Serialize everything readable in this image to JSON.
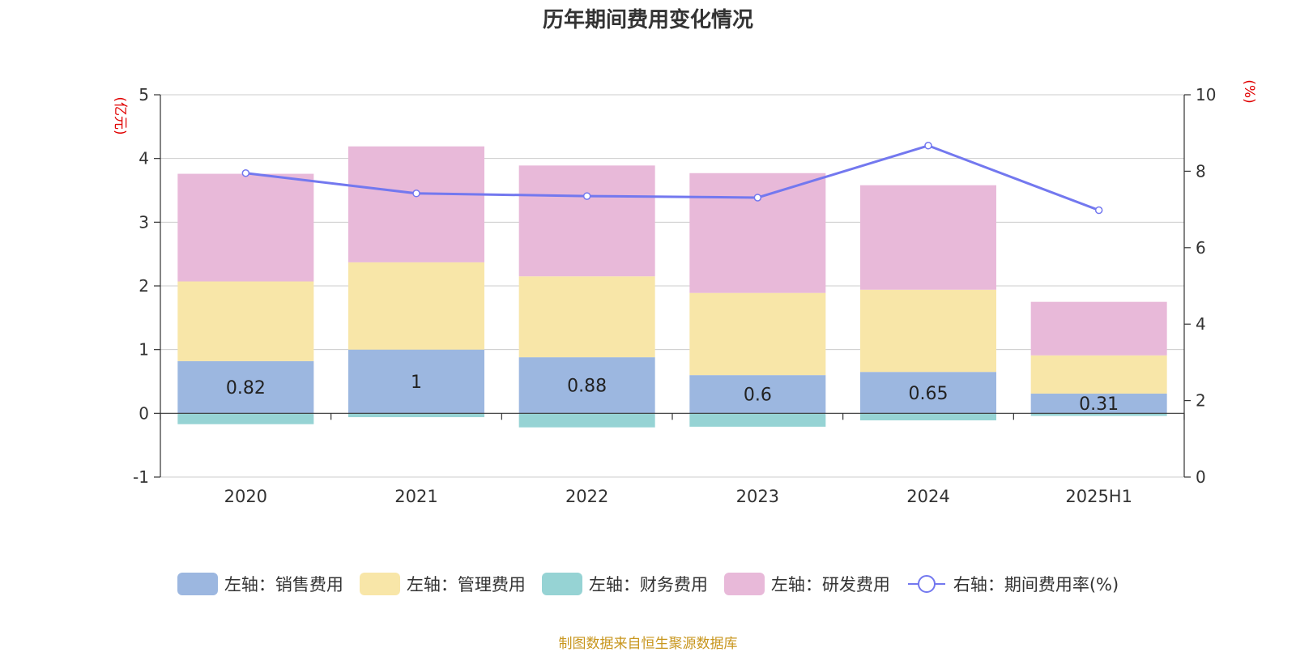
{
  "title": "历年期间费用变化情况",
  "source": "制图数据来自恒生聚源数据库",
  "colors": {
    "sales": "#9cb7e0",
    "admin": "#f8e6a8",
    "finance": "#96d3d4",
    "rnd": "#e8b9d9",
    "rate": "#7378ef",
    "axis_unit": "#e00000",
    "grid": "#cccccc"
  },
  "chart_data": {
    "type": "bar",
    "stacked": true,
    "categories": [
      "2020",
      "2021",
      "2022",
      "2023",
      "2024",
      "2025H1"
    ],
    "left_axis": {
      "unit": "(亿元)",
      "ylim": [
        -1,
        5
      ],
      "ticks": [
        "-1",
        "0",
        "1",
        "2",
        "3",
        "4",
        "5"
      ]
    },
    "right_axis": {
      "unit": "(%)",
      "ylim": [
        0,
        10
      ],
      "ticks": [
        "0",
        "2",
        "4",
        "6",
        "8",
        "10"
      ]
    },
    "series": [
      {
        "name": "左轴：销售费用",
        "key": "sales",
        "axis": "left",
        "values": [
          0.82,
          1,
          0.88,
          0.6,
          0.65,
          0.31
        ],
        "labels": [
          "0.82",
          "1",
          "0.88",
          "0.6",
          "0.65",
          "0.31"
        ]
      },
      {
        "name": "左轴：管理费用",
        "key": "admin",
        "axis": "left",
        "values": [
          1.25,
          1.37,
          1.27,
          1.29,
          1.29,
          0.6
        ]
      },
      {
        "name": "左轴：财务费用",
        "key": "finance",
        "axis": "left",
        "values": [
          -0.17,
          -0.06,
          -0.22,
          -0.21,
          -0.11,
          -0.04
        ]
      },
      {
        "name": "左轴：研发费用",
        "key": "rnd",
        "axis": "left",
        "values": [
          1.69,
          1.82,
          1.74,
          1.88,
          1.64,
          0.84
        ]
      },
      {
        "name": "右轴：期间费用率(%)",
        "key": "rate",
        "axis": "right",
        "type": "line",
        "values": [
          7.95,
          7.42,
          7.35,
          7.31,
          8.67,
          6.98
        ]
      }
    ],
    "grid": true,
    "legend_position": "bottom"
  }
}
